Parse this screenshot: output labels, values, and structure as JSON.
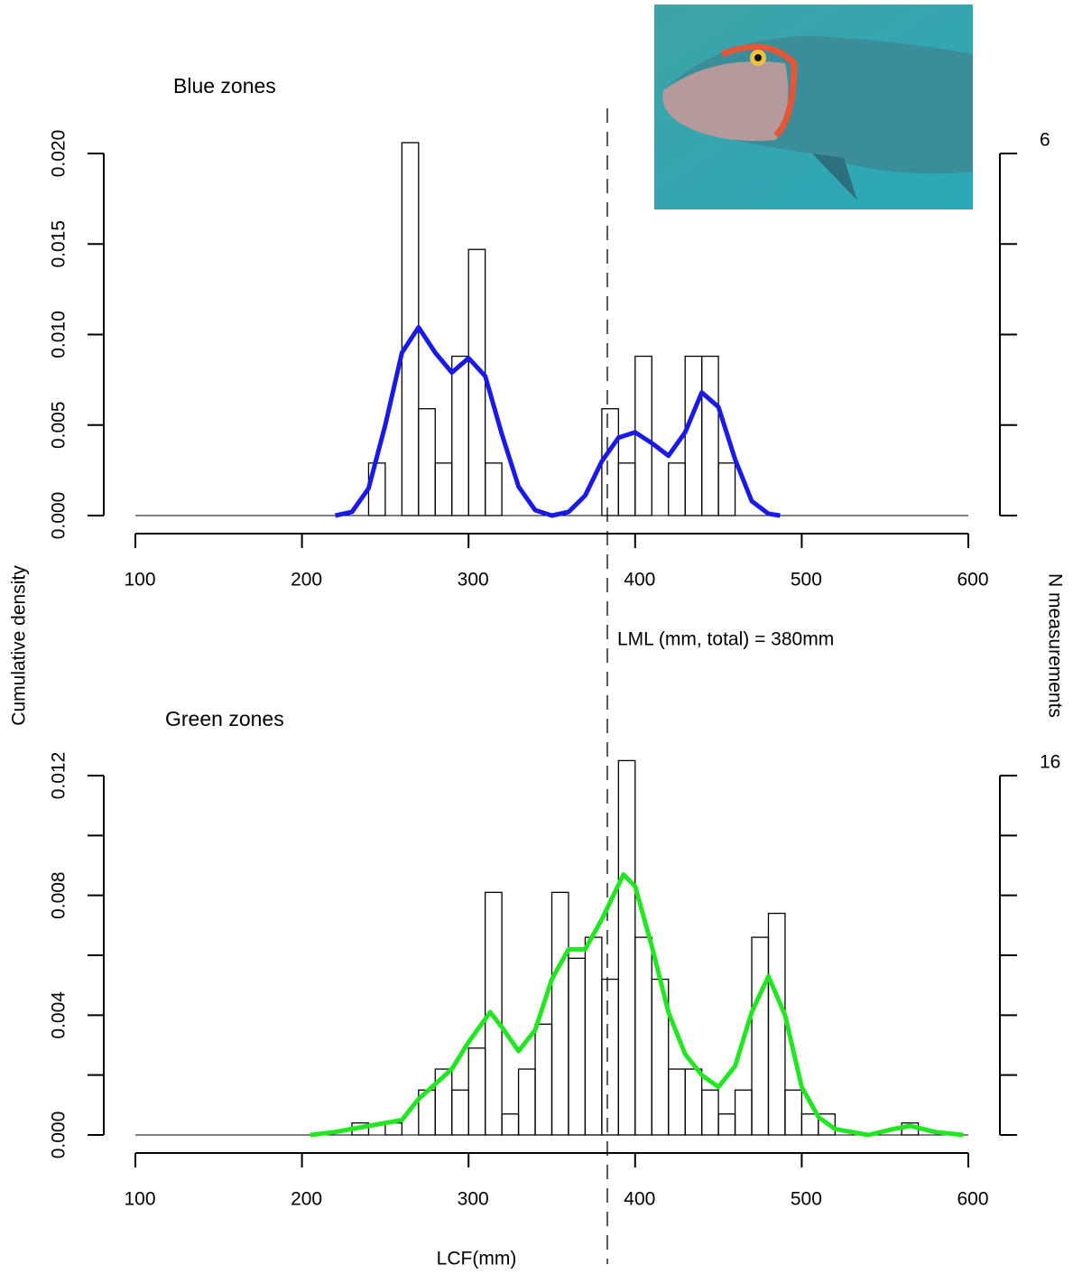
{
  "chart_data": [
    {
      "type": "histogram",
      "title": "Blue zones",
      "bins": [
        240,
        250,
        260,
        270,
        280,
        290,
        300,
        310,
        320,
        330,
        340,
        350,
        360,
        370,
        380,
        390,
        400,
        410,
        420,
        430,
        440,
        450,
        460
      ],
      "values": [
        0.0029,
        0,
        0.0206,
        0.0059,
        0.0029,
        0.0088,
        0.0147,
        0.0029,
        0,
        0,
        0,
        0,
        0,
        0,
        0.0059,
        0.0029,
        0.0088,
        0,
        0.0029,
        0.0088,
        0.0088,
        0.0029
      ],
      "density_x": [
        220,
        230,
        240,
        250,
        260,
        270,
        280,
        290,
        300,
        310,
        320,
        330,
        340,
        350,
        360,
        370,
        380,
        390,
        400,
        410,
        420,
        430,
        440,
        450,
        460,
        470,
        480,
        487
      ],
      "density": [
        0,
        0.0002,
        0.0015,
        0.005,
        0.009,
        0.0104,
        0.009,
        0.0079,
        0.0087,
        0.0077,
        0.0045,
        0.0016,
        0.0003,
        0,
        0.0002,
        0.0011,
        0.003,
        0.0043,
        0.0046,
        0.004,
        0.0033,
        0.0046,
        0.0068,
        0.006,
        0.0031,
        0.0008,
        0.0001,
        0
      ],
      "density_color": "#1a1ae6",
      "xlim": [
        100,
        600
      ],
      "xticks": [
        100,
        200,
        300,
        400,
        500,
        600
      ],
      "ylim": [
        0,
        0.02
      ],
      "yticks": [
        {
          "value": 0,
          "label": "0.000"
        },
        {
          "value": 0.005,
          "label": "0.005"
        },
        {
          "value": 0.01,
          "label": "0.010"
        },
        {
          "value": 0.015,
          "label": "0.015"
        },
        {
          "value": 0.02,
          "label": "0.020"
        }
      ],
      "y2lim": [
        0,
        6
      ],
      "y2ticks": [
        {
          "value": 0,
          "label": null
        },
        {
          "value": 1.5,
          "label": null
        },
        {
          "value": 3,
          "label": null
        },
        {
          "value": 4.5,
          "label": null
        },
        6
      ],
      "ylabel": "Cumulative density",
      "y2label": "N measurements",
      "annotation": "LML (mm, total) = 380mm"
    },
    {
      "type": "histogram",
      "title": "Green zones",
      "bins": [
        230,
        240,
        250,
        260,
        270,
        280,
        290,
        300,
        310,
        320,
        330,
        340,
        350,
        360,
        370,
        380,
        390,
        400,
        410,
        420,
        430,
        440,
        450,
        460,
        470,
        480,
        490,
        500,
        510,
        520,
        530,
        540,
        550,
        560,
        570
      ],
      "values": [
        0.0004,
        0,
        0.0004,
        0,
        0.0015,
        0.0022,
        0.0015,
        0.0029,
        0.0081,
        0.0007,
        0.0022,
        0.0037,
        0.0081,
        0.0059,
        0.0066,
        0.0052,
        0.0125,
        0.0066,
        0.0052,
        0.0022,
        0.0022,
        0.0015,
        0.0007,
        0.0015,
        0.0066,
        0.0074,
        0.0015,
        0.0007,
        0.0007,
        0,
        0,
        0,
        0,
        0.0004
      ],
      "density_x": [
        205,
        220,
        240,
        260,
        270,
        280,
        290,
        300,
        313,
        320,
        330,
        340,
        350,
        360,
        370,
        380,
        393,
        400,
        410,
        420,
        430,
        440,
        450,
        460,
        470,
        480,
        490,
        500,
        510,
        520,
        540,
        555,
        565,
        580,
        597
      ],
      "density": [
        0,
        0.0001,
        0.0003,
        0.0005,
        0.0012,
        0.0017,
        0.0022,
        0.0031,
        0.0041,
        0.0036,
        0.0028,
        0.0035,
        0.0052,
        0.0062,
        0.0062,
        0.0072,
        0.0087,
        0.0083,
        0.0063,
        0.0041,
        0.0027,
        0.002,
        0.0016,
        0.0023,
        0.0041,
        0.0053,
        0.004,
        0.0016,
        0.0006,
        0.0002,
        0,
        0.0002,
        0.0003,
        0.0001,
        0
      ],
      "density_color": "#22e622",
      "xlim": [
        100,
        600
      ],
      "xticks": [
        100,
        200,
        300,
        400,
        500,
        600
      ],
      "ylim": [
        0,
        0.012
      ],
      "yticks": [
        {
          "value": 0,
          "label": "0.000"
        },
        {
          "value": 0.002,
          "label": null
        },
        {
          "value": 0.004,
          "label": "0.004"
        },
        {
          "value": 0.006,
          "label": null
        },
        {
          "value": 0.008,
          "label": "0.008"
        },
        {
          "value": 0.01,
          "label": null
        },
        {
          "value": 0.012,
          "label": "0.012"
        }
      ],
      "y2lim": [
        0,
        16
      ],
      "y2ticks": [
        {
          "value": 0,
          "label": null
        },
        {
          "value": 2.67,
          "label": null
        },
        {
          "value": 5.33,
          "label": null
        },
        {
          "value": 8,
          "label": null
        },
        {
          "value": 10.67,
          "label": null
        },
        {
          "value": 13.33,
          "label": null
        },
        16
      ],
      "xlabel": "LCF(mm)"
    }
  ]
}
